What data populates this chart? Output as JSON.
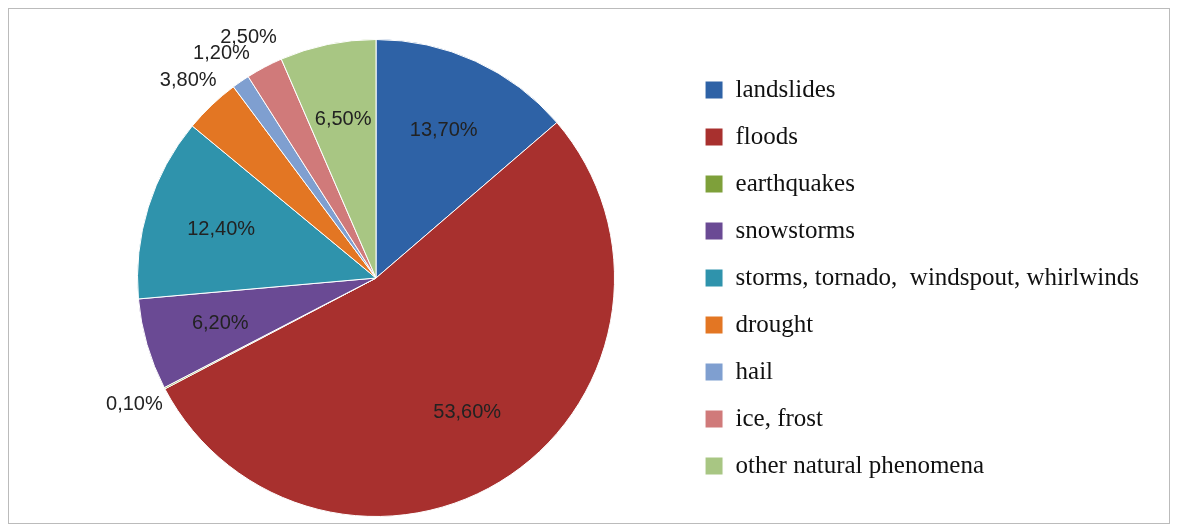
{
  "chart_data": {
    "type": "pie",
    "categories": [
      "landslides",
      "floods",
      "earthquakes",
      "snowstorms",
      "storms, tornado,  windspout, whirlwinds",
      "drought",
      "hail",
      "ice, frost",
      "other natural phenomena"
    ],
    "values": [
      13.7,
      53.6,
      0.1,
      6.2,
      12.4,
      3.8,
      1.2,
      2.5,
      6.5
    ],
    "value_labels": [
      "13,70%",
      "53,60%",
      "0,10%",
      "6,20%",
      "12,40%",
      "3,80%",
      "1,20%",
      "2,50%",
      "6,50%"
    ],
    "colors": [
      "#2e62a6",
      "#a8302e",
      "#7ea03a",
      "#6a4a94",
      "#2f93ac",
      "#e37623",
      "#7f9fd0",
      "#d07a7a",
      "#a8c683"
    ],
    "legend": "right"
  }
}
